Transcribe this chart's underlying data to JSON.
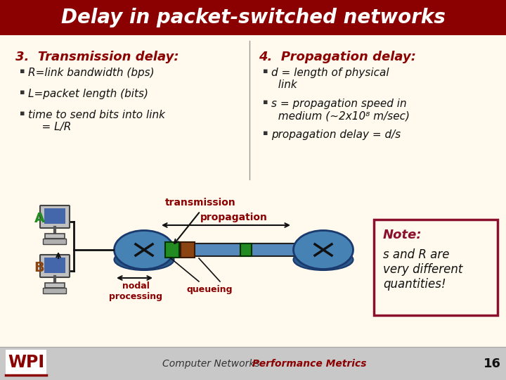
{
  "title": "Delay in packet-switched networks",
  "title_bg": "#8B0000",
  "title_color": "#FFFFFF",
  "body_bg": "#FFFAED",
  "section3_header": "3.  Transmission delay:",
  "section3_color": "#8B0000",
  "section3_bullets": [
    "R=link bandwidth (bps)",
    "L=packet length (bits)",
    "time to send bits into link\n    = L/R"
  ],
  "section4_header": "4.  Propagation delay:",
  "section4_color": "#8B0000",
  "section4_bullets": [
    "d = length of physical\n  link",
    "s = propagation speed in\n  medium (~2x10⁸ m/sec)",
    "propagation delay = d/s"
  ],
  "note_title": "Note:",
  "note_body": "s and R are\nvery different\nquantities!",
  "note_bg": "#FFFAED",
  "note_border": "#8B1030",
  "footer_left": "Computer Networks",
  "footer_right": "Performance Metrics",
  "footer_color_left": "#333333",
  "footer_color_right": "#8B0000",
  "footer_page": "16",
  "footer_bg": "#C8C8C8",
  "label_transmission": "transmission",
  "label_propagation": "propagation",
  "label_nodal": "nodal\nprocessing",
  "label_queueing": "queueing",
  "router_color": "#4682B4",
  "router_edge": "#1a3a6e",
  "pipe_color": "#5588BB",
  "pipe_edge": "#222222",
  "packet_green": "#228B22",
  "packet_brown": "#8B4513",
  "bullet_color": "#111111",
  "label_color_dark": "#8B0000",
  "computer_A_label_color": "#228B22",
  "computer_B_label_color": "#8B4513"
}
